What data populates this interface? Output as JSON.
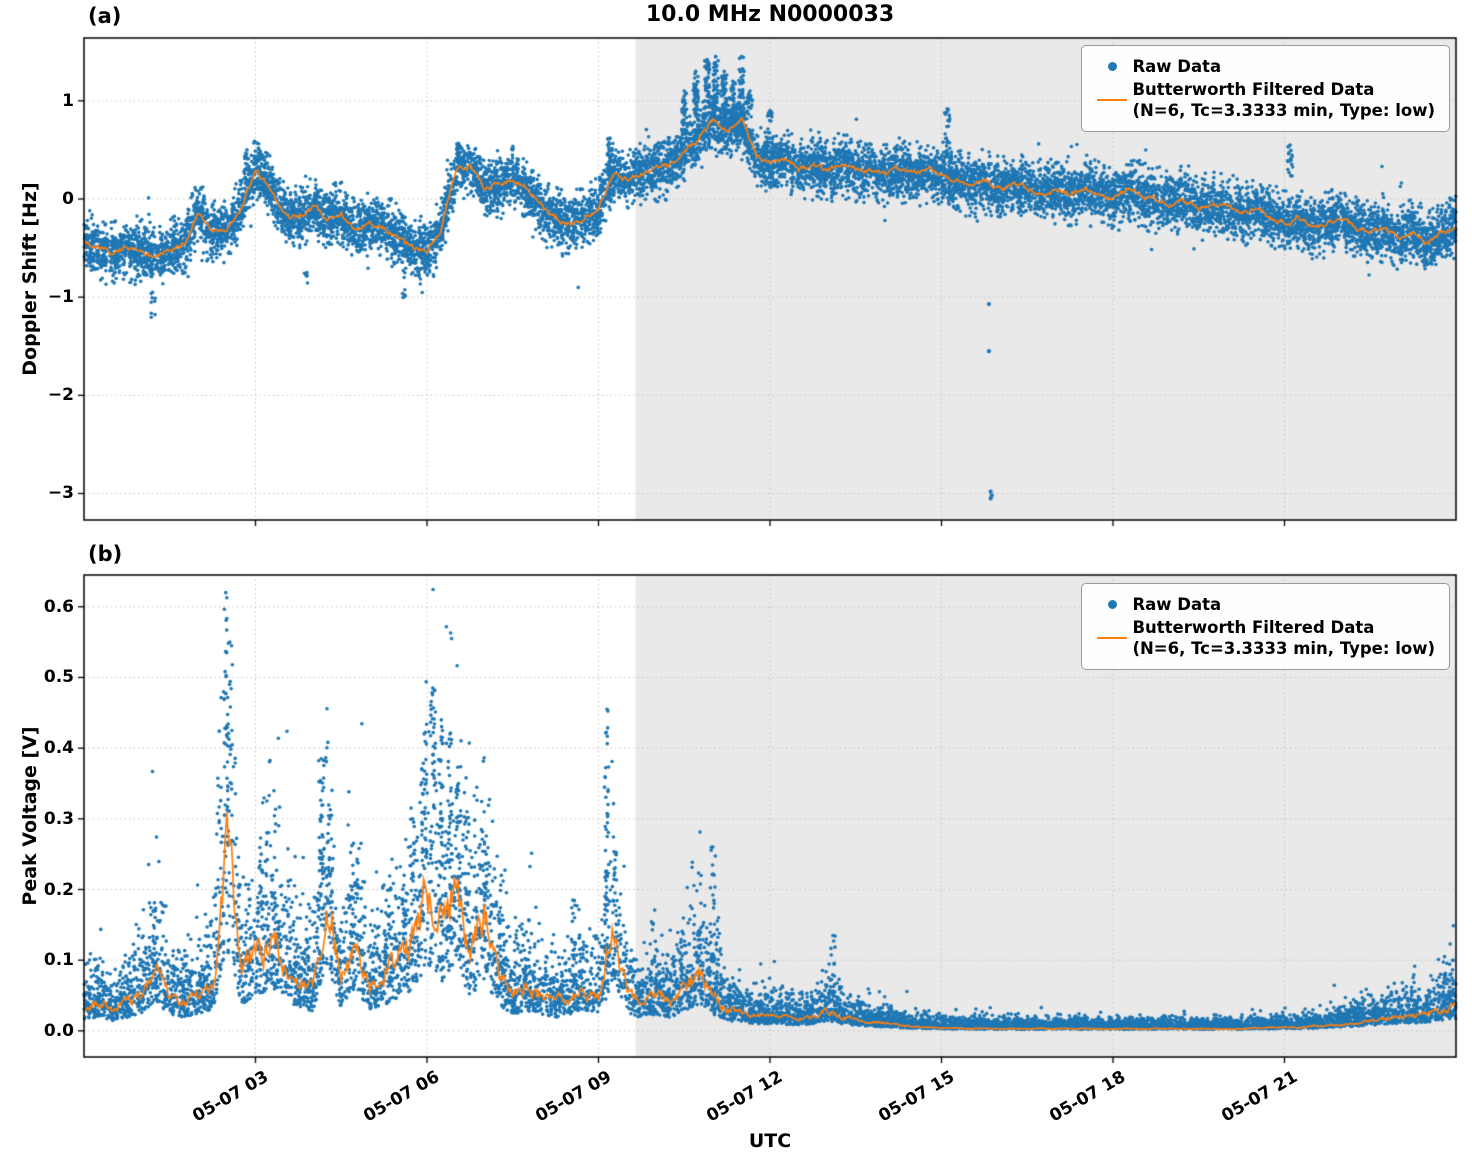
{
  "figure": {
    "title": "10.0 MHz N0000033",
    "xlabel": "UTC",
    "panel_a_label": "(a)",
    "panel_b_label": "(b)",
    "legend": {
      "raw": "Raw Data",
      "filtered_line1": "Butterworth Filtered Data",
      "filtered_line2": "(N=6, Tc=3.3333 min, Type: low)"
    },
    "colors": {
      "raw": "#1f77b4",
      "filtered": "#ff7f0e",
      "shade": "#e9e9e9",
      "grid": "#c4c4c4",
      "spine": "#000000"
    }
  },
  "chart_data": [
    {
      "type": "scatter",
      "panel": "a",
      "ylabel": "Doppler Shift [Hz]",
      "ylim": [
        -3.27,
        1.64
      ],
      "yticks": [
        1,
        0,
        -1,
        -2,
        -3
      ],
      "ytick_labels": [
        "1",
        "0",
        "−1",
        "−2",
        "−3"
      ],
      "x_axis": {
        "xlim_hours": [
          0,
          24
        ],
        "xticks_hours": [
          3,
          6,
          9,
          12,
          15,
          18,
          21
        ],
        "xtick_labels": [
          "05-07 03",
          "05-07 06",
          "05-07 09",
          "05-07 12",
          "05-07 15",
          "05-07 18",
          "05-07 21"
        ]
      },
      "shaded_region_hours": [
        9.65,
        24
      ],
      "legend_entries": [
        "Raw Data",
        "Butterworth Filtered Data (N=6, Tc=3.3333 min, Type: low)"
      ],
      "filtered_series": {
        "x_step_hours": 0.25,
        "y": [
          -0.45,
          -0.5,
          -0.55,
          -0.5,
          -0.55,
          -0.6,
          -0.5,
          -0.45,
          -0.15,
          -0.35,
          -0.3,
          -0.1,
          0.3,
          0.1,
          -0.15,
          -0.2,
          -0.1,
          -0.2,
          -0.15,
          -0.3,
          -0.25,
          -0.3,
          -0.4,
          -0.5,
          -0.55,
          -0.3,
          0.3,
          0.35,
          0.1,
          0.15,
          0.2,
          0.1,
          -0.1,
          -0.2,
          -0.25,
          -0.2,
          -0.1,
          0.25,
          0.2,
          0.25,
          0.3,
          0.35,
          0.5,
          0.6,
          0.8,
          0.7,
          0.8,
          0.45,
          0.35,
          0.4,
          0.3,
          0.35,
          0.3,
          0.35,
          0.3,
          0.3,
          0.25,
          0.3,
          0.25,
          0.3,
          0.25,
          0.2,
          0.15,
          0.2,
          0.1,
          0.15,
          0.1,
          0.05,
          0.1,
          0.05,
          0.1,
          0.05,
          0,
          0.1,
          0.05,
          0,
          -0.05,
          0,
          -0.1,
          -0.05,
          -0.1,
          -0.15,
          -0.1,
          -0.2,
          -0.25,
          -0.2,
          -0.3,
          -0.25,
          -0.2,
          -0.3,
          -0.35,
          -0.3,
          -0.4,
          -0.35,
          -0.45,
          -0.35,
          -0.3
        ]
      },
      "raw_scatter": {
        "band_halfwidth_hz": 0.3,
        "spikes": [
          [
            1.2,
            -1.35,
            -0.95,
            8
          ],
          [
            3.9,
            -0.95,
            -0.75,
            5
          ],
          [
            5.6,
            -1.05,
            -0.8,
            6
          ],
          [
            2.85,
            0.1,
            0.5,
            25
          ],
          [
            6.55,
            0.25,
            0.55,
            20
          ],
          [
            9.2,
            -0.05,
            0.62,
            45
          ],
          [
            10.5,
            0.6,
            1.1,
            35
          ],
          [
            10.7,
            0.7,
            1.3,
            45
          ],
          [
            10.9,
            0.8,
            1.42,
            50
          ],
          [
            11.05,
            0.7,
            1.45,
            50
          ],
          [
            11.2,
            0.7,
            1.3,
            45
          ],
          [
            11.35,
            0.6,
            1.2,
            40
          ],
          [
            11.5,
            0.5,
            1.45,
            45
          ],
          [
            11.65,
            0.5,
            1.1,
            30
          ],
          [
            12.0,
            0.5,
            0.9,
            20
          ],
          [
            15.1,
            0.35,
            0.92,
            30
          ],
          [
            21.1,
            0.15,
            0.55,
            18
          ]
        ],
        "outliers": [
          [
            15.83,
            -1.07
          ],
          [
            15.83,
            -1.55
          ],
          [
            15.86,
            -2.98
          ],
          [
            15.86,
            -3.05
          ],
          [
            15.88,
            -3.02
          ]
        ]
      }
    },
    {
      "type": "scatter",
      "panel": "b",
      "ylabel": "Peak Voltage [V]",
      "ylim": [
        -0.037,
        0.645
      ],
      "yticks": [
        0.0,
        0.1,
        0.2,
        0.3,
        0.4,
        0.5,
        0.6
      ],
      "ytick_labels": [
        "0.0",
        "0.1",
        "0.2",
        "0.3",
        "0.4",
        "0.5",
        "0.6"
      ],
      "x_axis": {
        "xlim_hours": [
          0,
          24
        ],
        "xticks_hours": [
          3,
          6,
          9,
          12,
          15,
          18,
          21
        ],
        "xtick_labels": [
          "05-07 03",
          "05-07 06",
          "05-07 09",
          "05-07 12",
          "05-07 15",
          "05-07 18",
          "05-07 21"
        ]
      },
      "shaded_region_hours": [
        9.65,
        24
      ],
      "legend_entries": [
        "Raw Data",
        "Butterworth Filtered Data (N=6, Tc=3.3333 min, Type: low)"
      ],
      "filtered_series": {
        "x_step_hours": 0.25,
        "y": [
          0.03,
          0.04,
          0.03,
          0.04,
          0.05,
          0.09,
          0.05,
          0.04,
          0.05,
          0.06,
          0.26,
          0.08,
          0.1,
          0.13,
          0.1,
          0.07,
          0.06,
          0.19,
          0.07,
          0.13,
          0.06,
          0.08,
          0.1,
          0.12,
          0.21,
          0.15,
          0.22,
          0.1,
          0.16,
          0.08,
          0.05,
          0.06,
          0.05,
          0.04,
          0.05,
          0.06,
          0.05,
          0.14,
          0.05,
          0.04,
          0.05,
          0.04,
          0.06,
          0.08,
          0.05,
          0.03,
          0.025,
          0.02,
          0.02,
          0.018,
          0.015,
          0.02,
          0.03,
          0.02,
          0.015,
          0.012,
          0.01,
          0.008,
          0.006,
          0.005,
          0.004,
          0.004,
          0.003,
          0.003,
          0.003,
          0.003,
          0.003,
          0.003,
          0.003,
          0.003,
          0.003,
          0.003,
          0.003,
          0.003,
          0.003,
          0.003,
          0.003,
          0.003,
          0.003,
          0.003,
          0.003,
          0.003,
          0.004,
          0.004,
          0.005,
          0.005,
          0.006,
          0.008,
          0.01,
          0.012,
          0.015,
          0.018,
          0.02,
          0.022,
          0.025,
          0.028,
          0.035
        ]
      },
      "raw_scatter": {
        "typical_spread": "0 to ~2.2x filtered value",
        "spikes": [
          [
            1.25,
            0.1,
            0.17,
            10
          ],
          [
            2.48,
            0.28,
            0.62,
            30
          ],
          [
            2.55,
            0.2,
            0.55,
            18
          ],
          [
            3.1,
            0.15,
            0.25,
            12
          ],
          [
            3.3,
            0.12,
            0.22,
            10
          ],
          [
            4.15,
            0.18,
            0.385,
            25
          ],
          [
            4.3,
            0.15,
            0.3,
            12
          ],
          [
            4.75,
            0.12,
            0.21,
            10
          ],
          [
            5.35,
            0.1,
            0.2,
            10
          ],
          [
            5.6,
            0.12,
            0.22,
            12
          ],
          [
            5.75,
            0.15,
            0.3,
            15
          ],
          [
            5.95,
            0.2,
            0.42,
            25
          ],
          [
            6.1,
            0.22,
            0.485,
            30
          ],
          [
            6.25,
            0.2,
            0.44,
            25
          ],
          [
            6.4,
            0.18,
            0.42,
            22
          ],
          [
            6.55,
            0.15,
            0.35,
            18
          ],
          [
            6.7,
            0.12,
            0.31,
            14
          ],
          [
            7.0,
            0.12,
            0.31,
            15
          ],
          [
            7.3,
            0.1,
            0.22,
            10
          ],
          [
            8.55,
            0.08,
            0.185,
            10
          ],
          [
            9.15,
            0.12,
            0.455,
            30
          ],
          [
            9.3,
            0.1,
            0.25,
            12
          ],
          [
            10.75,
            0.06,
            0.14,
            10
          ],
          [
            11.0,
            0.08,
            0.26,
            25
          ],
          [
            11.1,
            0.06,
            0.16,
            10
          ],
          [
            13.1,
            0.04,
            0.135,
            15
          ],
          [
            23.8,
            0.04,
            0.105,
            10
          ],
          [
            23.95,
            0.04,
            0.1,
            8
          ]
        ],
        "outliers": []
      }
    }
  ]
}
